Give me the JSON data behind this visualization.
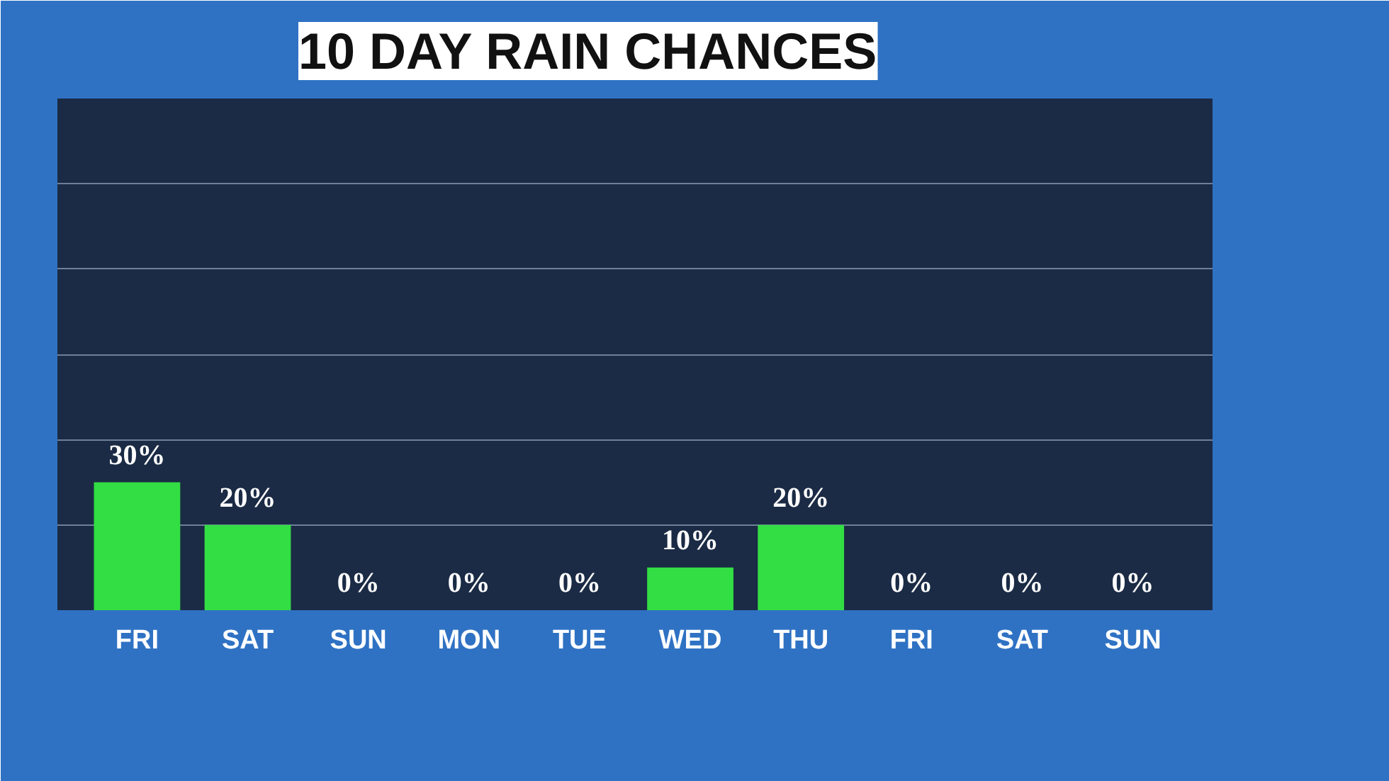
{
  "chart_data": {
    "type": "bar",
    "title": "10 DAY RAIN CHANCES",
    "categories": [
      "FRI",
      "SAT",
      "SUN",
      "MON",
      "TUE",
      "WED",
      "THU",
      "FRI",
      "SAT",
      "SUN"
    ],
    "values": [
      30,
      20,
      0,
      0,
      0,
      10,
      20,
      0,
      0,
      0
    ],
    "value_labels": [
      "30%",
      "20%",
      "0%",
      "0%",
      "0%",
      "10%",
      "20%",
      "0%",
      "0%",
      "0%"
    ],
    "color": "#33dd44",
    "ylim": [
      0,
      120
    ],
    "yticks": [
      {
        "value": 0,
        "label": null
      },
      {
        "value": 20,
        "label": null
      },
      {
        "value": 40,
        "label": null
      },
      {
        "value": 60,
        "label": null
      },
      {
        "value": 80,
        "label": null
      },
      {
        "value": 100,
        "label": null
      }
    ],
    "tick_labels": "x",
    "grid": "y"
  }
}
